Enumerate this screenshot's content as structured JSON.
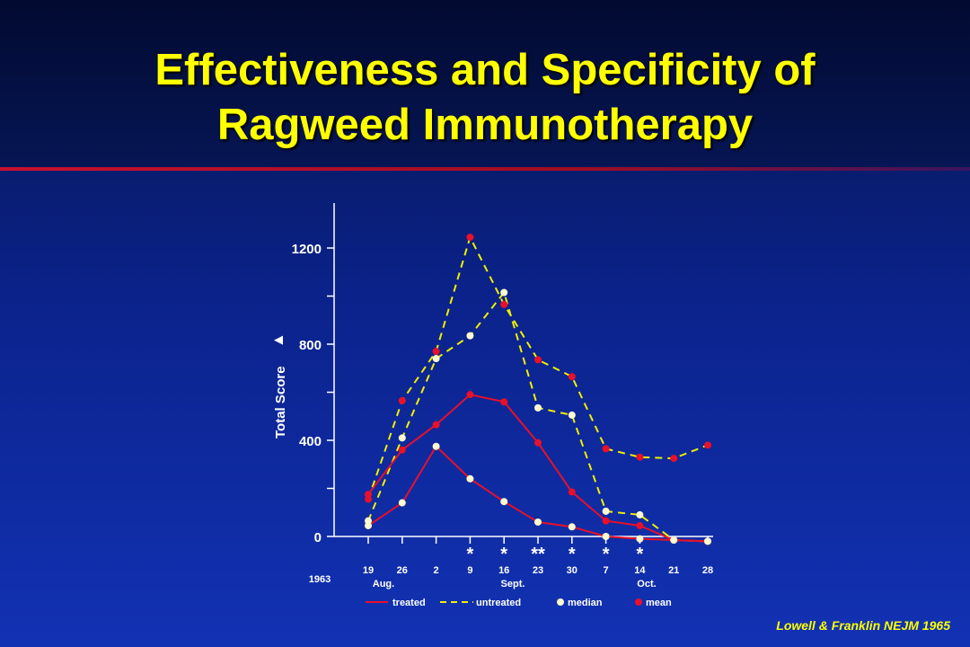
{
  "title_line1": "Effectiveness and Specificity of",
  "title_line2": "Ragweed Immunotherapy",
  "citation": "Lowell & Franklin NEJM 1965",
  "colors": {
    "title": "#ffff00",
    "treated": "#e8102a",
    "untreated": "#f0f000",
    "median_marker": "#fffbd0",
    "mean_marker": "#e8102a",
    "axis_text": "#ffffff",
    "background": "#0b228a"
  },
  "chart_data": {
    "type": "line",
    "title": "",
    "xlabel": "",
    "ylabel": "Total Score",
    "ylabel_arrow": "▲",
    "year_label": "1963",
    "ylim": [
      0,
      1380
    ],
    "yticks": [
      0,
      400,
      800,
      1200
    ],
    "x": [
      "19",
      "26",
      "2",
      "9",
      "16",
      "23",
      "30",
      "7",
      "14",
      "21",
      "28"
    ],
    "month_labels": [
      "Aug.",
      "Sept.",
      "Oct."
    ],
    "significance_marks": [
      "*",
      "*",
      "**",
      "*",
      "*",
      "*"
    ],
    "legend": {
      "treated": "treated",
      "untreated": "untreated",
      "median": "median",
      "mean": "mean"
    },
    "legend_position": "bottom",
    "series": [
      {
        "group": "untreated",
        "stat": "mean",
        "values": [
          155,
          565,
          770,
          1245,
          965,
          735,
          665,
          365,
          330,
          325,
          380
        ]
      },
      {
        "group": "untreated",
        "stat": "median",
        "values": [
          65,
          410,
          740,
          835,
          1015,
          535,
          505,
          105,
          90,
          -15,
          -20
        ]
      },
      {
        "group": "treated",
        "stat": "mean",
        "values": [
          175,
          360,
          465,
          590,
          560,
          390,
          185,
          65,
          45,
          -15,
          -20
        ]
      },
      {
        "group": "treated",
        "stat": "median",
        "values": [
          45,
          140,
          375,
          240,
          145,
          60,
          40,
          0,
          -10,
          -15,
          -20
        ]
      }
    ]
  }
}
